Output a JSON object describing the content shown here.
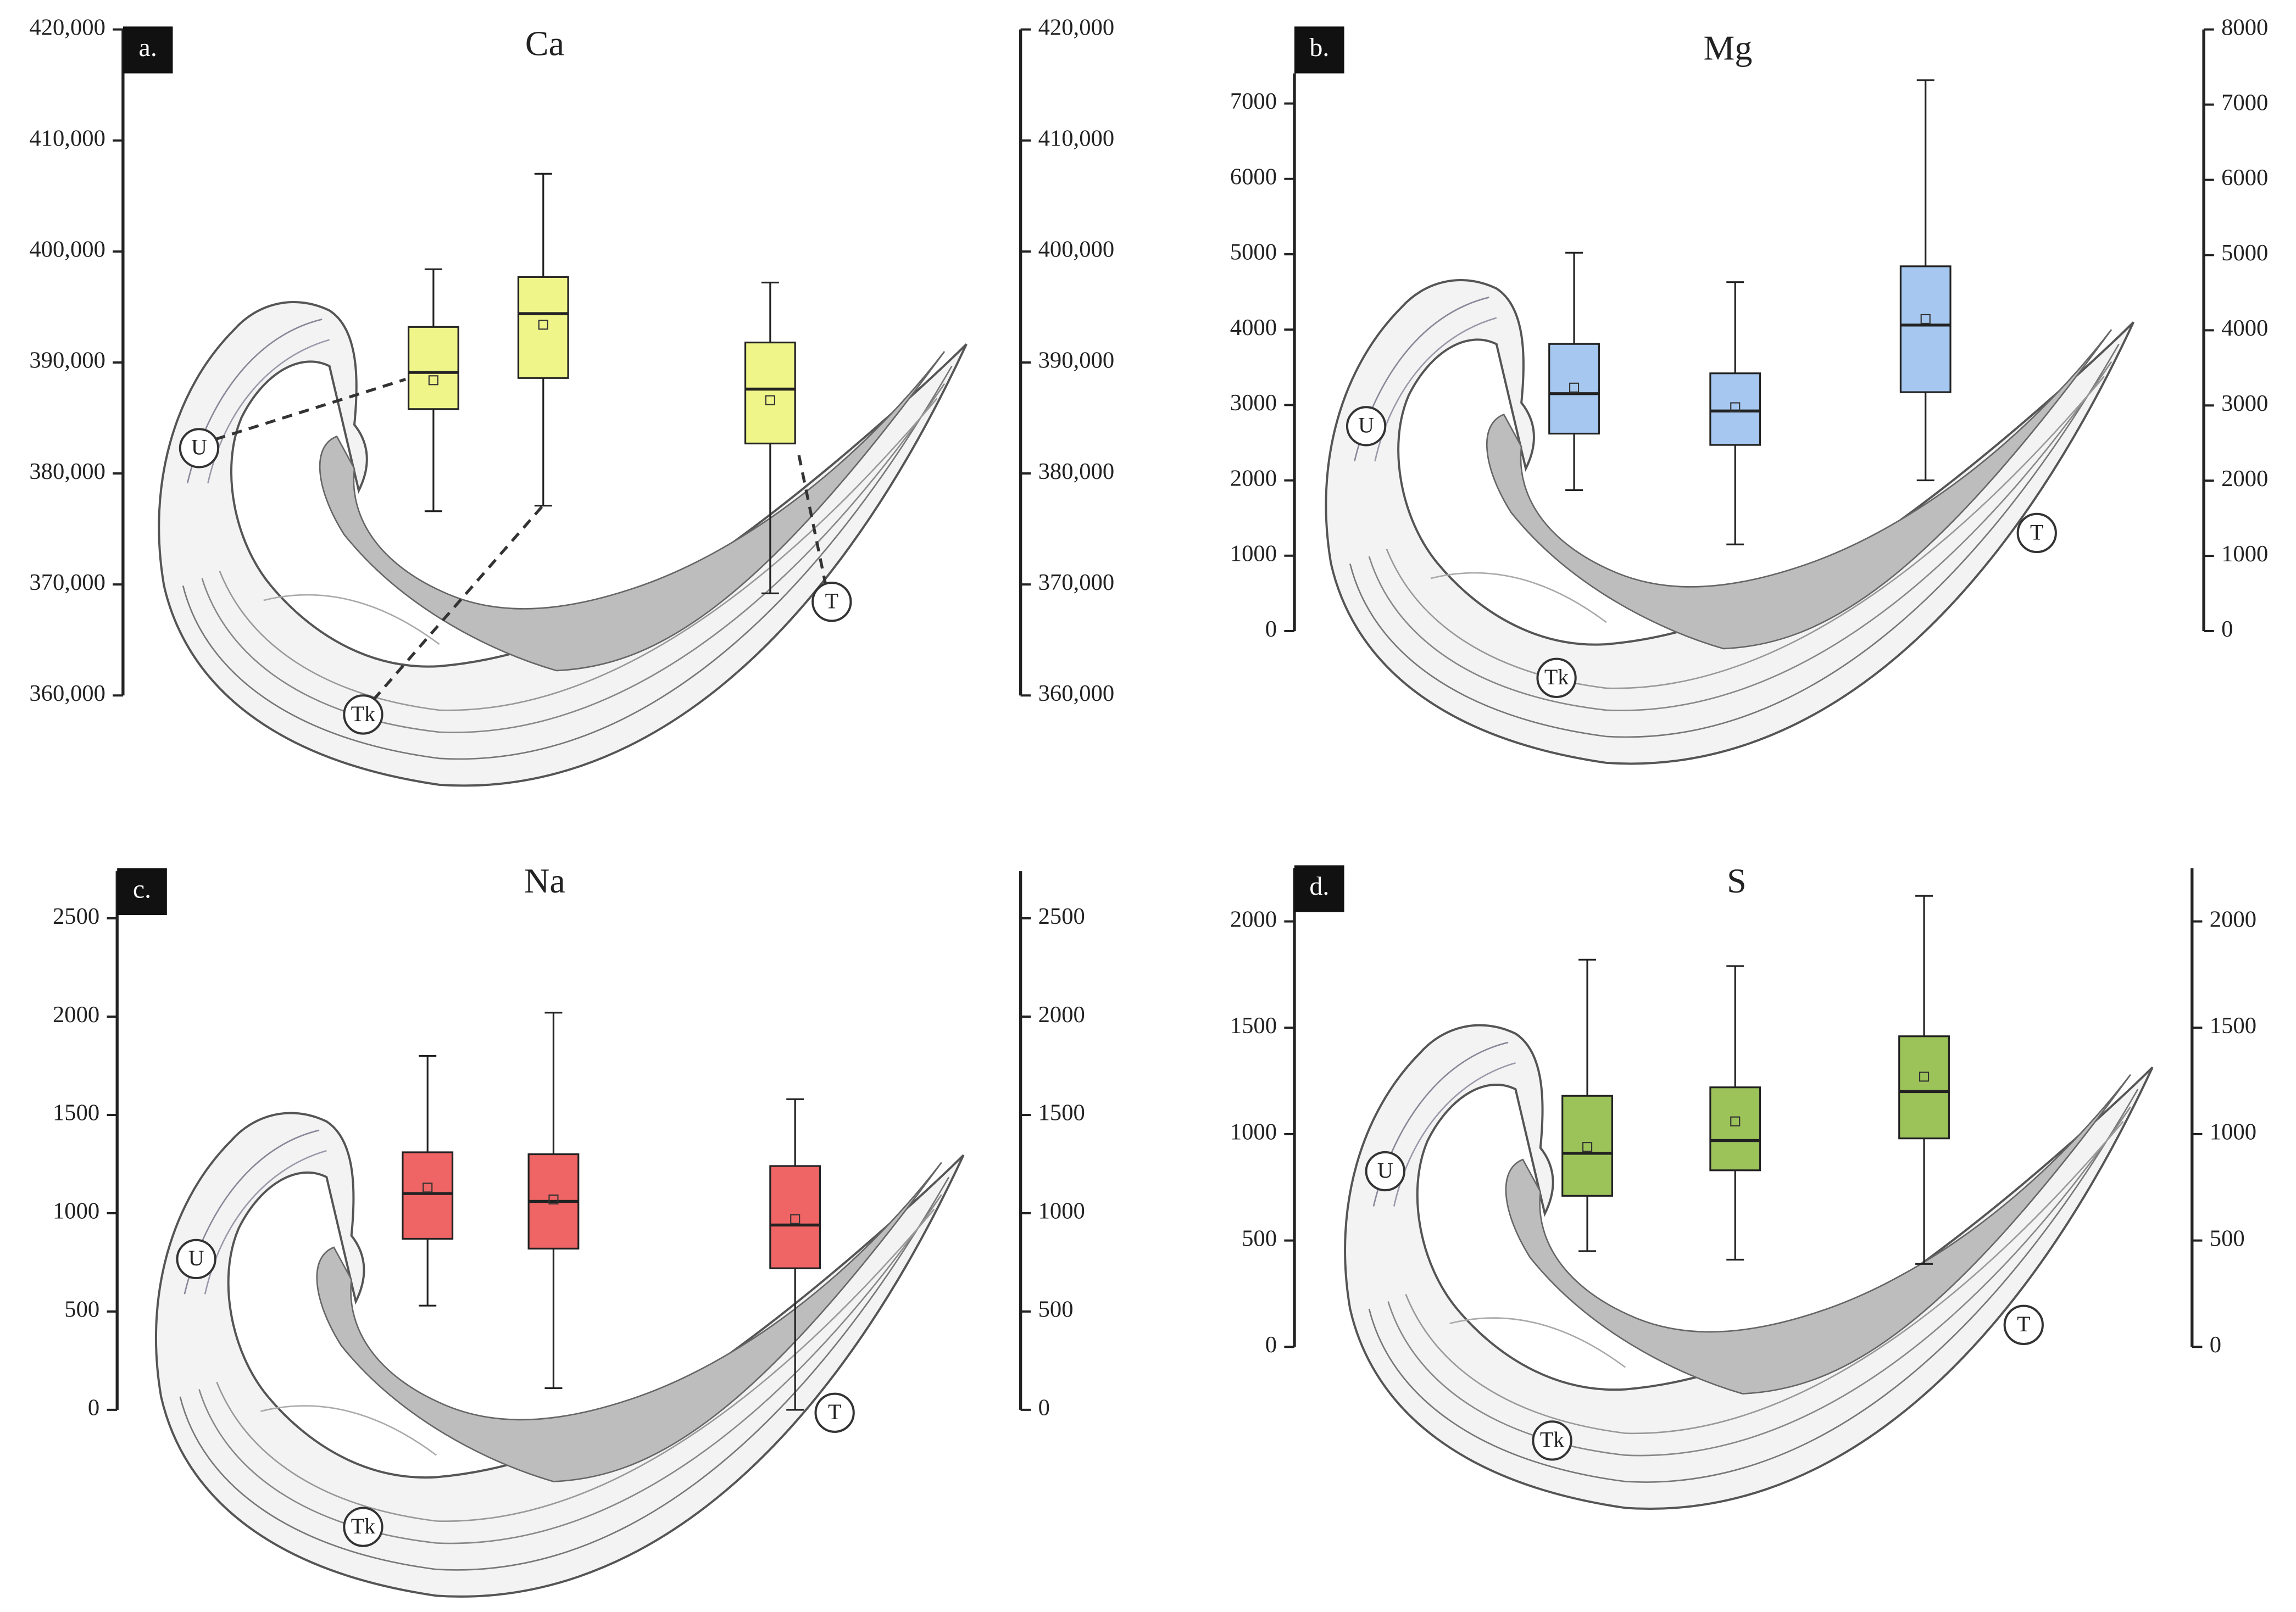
{
  "chart_data": [
    {
      "type": "box",
      "panel_label": "a.",
      "title": "Ca",
      "categories": [
        "U",
        "Tk",
        "T"
      ],
      "color": "#f0f58a",
      "ylim": [
        360000,
        420000
      ],
      "yticks": [
        {
          "value": 360000,
          "label": "360,000"
        },
        {
          "value": 370000,
          "label": "370,000"
        },
        {
          "value": 380000,
          "label": "380,000"
        },
        {
          "value": 390000,
          "label": "390,000"
        },
        {
          "value": 400000,
          "label": "400,000"
        },
        {
          "value": 410000,
          "label": "410,000"
        },
        {
          "value": 420000,
          "label": "420,000"
        }
      ],
      "y2lim": [
        360000,
        420000
      ],
      "y2ticks": [
        {
          "value": 360000,
          "label": "360,000"
        },
        {
          "value": 370000,
          "label": "370,000"
        },
        {
          "value": 380000,
          "label": "380,000"
        },
        {
          "value": 390000,
          "label": "390,000"
        },
        {
          "value": 400000,
          "label": "400,000"
        },
        {
          "value": 410000,
          "label": "410,000"
        },
        {
          "value": 420000,
          "label": "420,000"
        }
      ],
      "boxes": [
        {
          "whisker_low": 376600,
          "q1": 385800,
          "median": 389100,
          "q3": 393200,
          "whisker_high": 398400,
          "mean": 388400
        },
        {
          "whisker_low": 377100,
          "q1": 388600,
          "median": 394400,
          "q3": 397700,
          "whisker_high": 407000,
          "mean": 393400
        },
        {
          "whisker_low": 369200,
          "q1": 382700,
          "median": 387600,
          "q3": 391800,
          "whisker_high": 397200,
          "mean": 386600
        }
      ]
    },
    {
      "type": "box",
      "panel_label": "b.",
      "title": "Mg",
      "categories": [
        "U",
        "Tk",
        "T"
      ],
      "color": "#a6c8f0",
      "ylim": [
        0,
        7400
      ],
      "yticks": [
        0,
        1000,
        2000,
        3000,
        4000,
        5000,
        6000,
        7000
      ],
      "y2lim": [
        0,
        8000
      ],
      "y2ticks": [
        0,
        1000,
        2000,
        3000,
        4000,
        5000,
        6000,
        7000,
        8000
      ],
      "boxes": [
        {
          "whisker_low": 1870,
          "q1": 2620,
          "median": 3150,
          "q3": 3810,
          "whisker_high": 5020,
          "mean": 3230
        },
        {
          "whisker_low": 1150,
          "q1": 2470,
          "median": 2920,
          "q3": 3420,
          "whisker_high": 4630,
          "mean": 2970
        },
        {
          "whisker_low": 2000,
          "q1": 3170,
          "median": 4060,
          "q3": 4840,
          "whisker_high": 7310,
          "mean": 4140
        }
      ]
    },
    {
      "type": "box",
      "panel_label": "c.",
      "title": "Na",
      "categories": [
        "U",
        "Tk",
        "T"
      ],
      "color": "#ef6464",
      "ylim": [
        0,
        2740
      ],
      "yticks": [
        0,
        500,
        1000,
        1500,
        2000,
        2500
      ],
      "y2lim": [
        0,
        2740
      ],
      "y2ticks": [
        0,
        500,
        1000,
        1500,
        2000,
        2500
      ],
      "boxes": [
        {
          "whisker_low": 530,
          "q1": 870,
          "median": 1100,
          "q3": 1310,
          "whisker_high": 1800,
          "mean": 1130
        },
        {
          "whisker_low": 110,
          "q1": 820,
          "median": 1060,
          "q3": 1300,
          "whisker_high": 2020,
          "mean": 1070
        },
        {
          "whisker_low": 0,
          "q1": 720,
          "median": 940,
          "q3": 1240,
          "whisker_high": 1580,
          "mean": 970
        }
      ]
    },
    {
      "type": "box",
      "panel_label": "d.",
      "title": "S",
      "categories": [
        "U",
        "Tk",
        "T"
      ],
      "color": "#9cc35a",
      "ylim": [
        0,
        2250
      ],
      "yticks": [
        0,
        500,
        1000,
        1500,
        2000
      ],
      "y2lim": [
        0,
        2250
      ],
      "y2ticks": [
        0,
        500,
        1000,
        1500,
        2000
      ],
      "boxes": [
        {
          "whisker_low": 450,
          "q1": 710,
          "median": 910,
          "q3": 1180,
          "whisker_high": 1820,
          "mean": 940
        },
        {
          "whisker_low": 410,
          "q1": 830,
          "median": 970,
          "q3": 1220,
          "whisker_high": 1790,
          "mean": 1060
        },
        {
          "whisker_low": 390,
          "q1": 980,
          "median": 1200,
          "q3": 1460,
          "whisker_high": 2120,
          "mean": 1270
        }
      ]
    }
  ]
}
